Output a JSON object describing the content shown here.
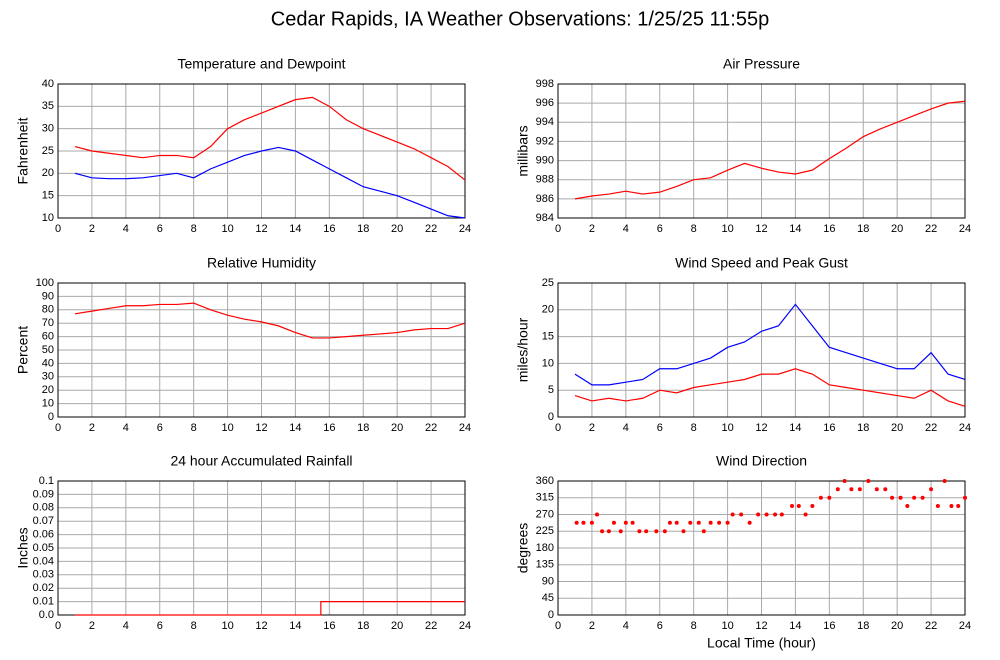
{
  "title": "Cedar Rapids, IA Weather Observations: 1/25/25 11:55p",
  "chart_data": [
    {
      "type": "line",
      "title": "Temperature and Dewpoint",
      "ylabel": "Fahrenheit",
      "x": [
        1,
        2,
        3,
        4,
        5,
        6,
        7,
        8,
        9,
        10,
        11,
        12,
        13,
        14,
        15,
        16,
        17,
        18,
        19,
        20,
        21,
        22,
        23,
        24
      ],
      "series": [
        {
          "color": "#ff0000",
          "values": [
            26,
            25,
            24.5,
            24,
            23.5,
            24,
            24,
            23.5,
            26,
            30,
            32,
            33.5,
            35,
            36.5,
            37,
            35,
            32,
            30,
            28.5,
            27,
            25.5,
            23.5,
            21.5,
            18.5
          ]
        },
        {
          "color": "#0000ff",
          "values": [
            20,
            19,
            18.8,
            18.8,
            19,
            19.5,
            20,
            19,
            21,
            22.5,
            24,
            25,
            25.8,
            25,
            23,
            21,
            19,
            17,
            16,
            15,
            13.5,
            12,
            10.5,
            10
          ]
        }
      ],
      "xlim": [
        0,
        24
      ],
      "xticks": [
        0,
        2,
        4,
        6,
        8,
        10,
        12,
        14,
        16,
        18,
        20,
        22,
        24
      ],
      "ylim": [
        10,
        40
      ],
      "yticks": [
        10,
        15,
        20,
        25,
        30,
        35,
        40
      ]
    },
    {
      "type": "line",
      "title": "Air Pressure",
      "ylabel": "millibars",
      "x": [
        1,
        2,
        3,
        4,
        5,
        6,
        7,
        8,
        9,
        10,
        11,
        12,
        13,
        14,
        15,
        16,
        17,
        18,
        19,
        20,
        21,
        22,
        23,
        24
      ],
      "series": [
        {
          "color": "#ff0000",
          "values": [
            986,
            986.3,
            986.5,
            986.8,
            986.5,
            986.7,
            987.3,
            988,
            988.2,
            989,
            989.7,
            989.2,
            988.8,
            988.6,
            989,
            990.2,
            991.3,
            992.5,
            993.3,
            994,
            994.7,
            995.4,
            996,
            996.2
          ]
        }
      ],
      "xlim": [
        0,
        24
      ],
      "xticks": [
        0,
        2,
        4,
        6,
        8,
        10,
        12,
        14,
        16,
        18,
        20,
        22,
        24
      ],
      "ylim": [
        984,
        998
      ],
      "yticks": [
        984,
        986,
        988,
        990,
        992,
        994,
        996,
        998
      ]
    },
    {
      "type": "line",
      "title": "Relative Humidity",
      "ylabel": "Percent",
      "x": [
        1,
        2,
        3,
        4,
        5,
        6,
        7,
        8,
        9,
        10,
        11,
        12,
        13,
        14,
        15,
        16,
        17,
        18,
        19,
        20,
        21,
        22,
        23,
        24
      ],
      "series": [
        {
          "color": "#ff0000",
          "values": [
            77,
            79,
            81,
            83,
            83,
            84,
            84,
            85,
            80,
            76,
            73,
            71,
            68,
            63,
            59,
            59,
            60,
            61,
            62,
            63,
            65,
            66,
            66,
            70
          ]
        }
      ],
      "xlim": [
        0,
        24
      ],
      "xticks": [
        0,
        2,
        4,
        6,
        8,
        10,
        12,
        14,
        16,
        18,
        20,
        22,
        24
      ],
      "ylim": [
        0,
        100
      ],
      "yticks": [
        0,
        10,
        20,
        30,
        40,
        50,
        60,
        70,
        80,
        90,
        100
      ]
    },
    {
      "type": "line",
      "title": "Wind Speed and Peak Gust",
      "ylabel": "miles/hour",
      "x": [
        1,
        2,
        3,
        4,
        5,
        6,
        7,
        8,
        9,
        10,
        11,
        12,
        13,
        14,
        15,
        16,
        17,
        18,
        19,
        20,
        21,
        22,
        23,
        24
      ],
      "series": [
        {
          "color": "#0000ff",
          "values": [
            8,
            6,
            6,
            6.5,
            7,
            9,
            9,
            10,
            11,
            13,
            14,
            16,
            17,
            21,
            17,
            13,
            12,
            11,
            10,
            9,
            9,
            12,
            8,
            7
          ]
        },
        {
          "color": "#ff0000",
          "values": [
            4,
            3,
            3.5,
            3,
            3.5,
            5,
            4.5,
            5.5,
            6,
            6.5,
            7,
            8,
            8,
            9,
            8,
            6,
            5.5,
            5,
            4.5,
            4,
            3.5,
            5,
            3,
            2
          ]
        }
      ],
      "xlim": [
        0,
        24
      ],
      "xticks": [
        0,
        2,
        4,
        6,
        8,
        10,
        12,
        14,
        16,
        18,
        20,
        22,
        24
      ],
      "ylim": [
        0,
        25
      ],
      "yticks": [
        0,
        5,
        10,
        15,
        20,
        25
      ]
    },
    {
      "type": "line",
      "title": "24 hour Accumulated Rainfall",
      "ylabel": "Inches",
      "x": [
        1,
        15.5,
        15.5,
        24
      ],
      "series": [
        {
          "color": "#ff0000",
          "values": [
            0,
            0,
            0.01,
            0.01
          ]
        }
      ],
      "xlim": [
        0,
        24
      ],
      "xticks": [
        0,
        2,
        4,
        6,
        8,
        10,
        12,
        14,
        16,
        18,
        20,
        22,
        24
      ],
      "ylim": [
        0,
        0.1
      ],
      "yticks": [
        {
          "value": 0,
          "label": "0.0"
        },
        0.01,
        0.02,
        0.03,
        0.04,
        0.05,
        0.06,
        0.07,
        0.08,
        0.09,
        0.1
      ]
    },
    {
      "type": "scatter",
      "title": "Wind Direction",
      "ylabel": "degrees",
      "xlabel": "Local Time (hour)",
      "x": [
        1.1,
        1.5,
        2,
        2.3,
        2.6,
        3,
        3.3,
        3.7,
        4,
        4.4,
        4.8,
        5.2,
        5.8,
        6.3,
        6.6,
        7,
        7.4,
        7.8,
        8.3,
        8.6,
        9,
        9.5,
        10,
        10.3,
        10.8,
        11.3,
        11.8,
        12.3,
        12.8,
        13.2,
        13.8,
        14.2,
        14.6,
        15,
        15.5,
        16,
        16.5,
        16.9,
        17.3,
        17.8,
        18.3,
        18.8,
        19.3,
        19.7,
        20.2,
        20.6,
        21,
        21.5,
        22,
        22.4,
        22.8,
        23.2,
        23.6,
        24
      ],
      "series": [
        {
          "color": "#ff0000",
          "values": [
            248,
            248,
            248,
            270,
            225,
            225,
            248,
            225,
            248,
            248,
            225,
            225,
            225,
            225,
            248,
            248,
            225,
            248,
            248,
            225,
            248,
            248,
            248,
            270,
            270,
            248,
            270,
            270,
            270,
            270,
            293,
            293,
            270,
            293,
            315,
            315,
            338,
            360,
            338,
            338,
            360,
            338,
            338,
            315,
            315,
            293,
            315,
            315,
            338,
            293,
            360,
            293,
            293,
            315
          ]
        }
      ],
      "xlim": [
        0,
        24
      ],
      "xticks": [
        0,
        2,
        4,
        6,
        8,
        10,
        12,
        14,
        16,
        18,
        20,
        22,
        24
      ],
      "ylim": [
        0,
        360
      ],
      "yticks": [
        0,
        45,
        90,
        135,
        180,
        225,
        270,
        315,
        360
      ]
    }
  ]
}
